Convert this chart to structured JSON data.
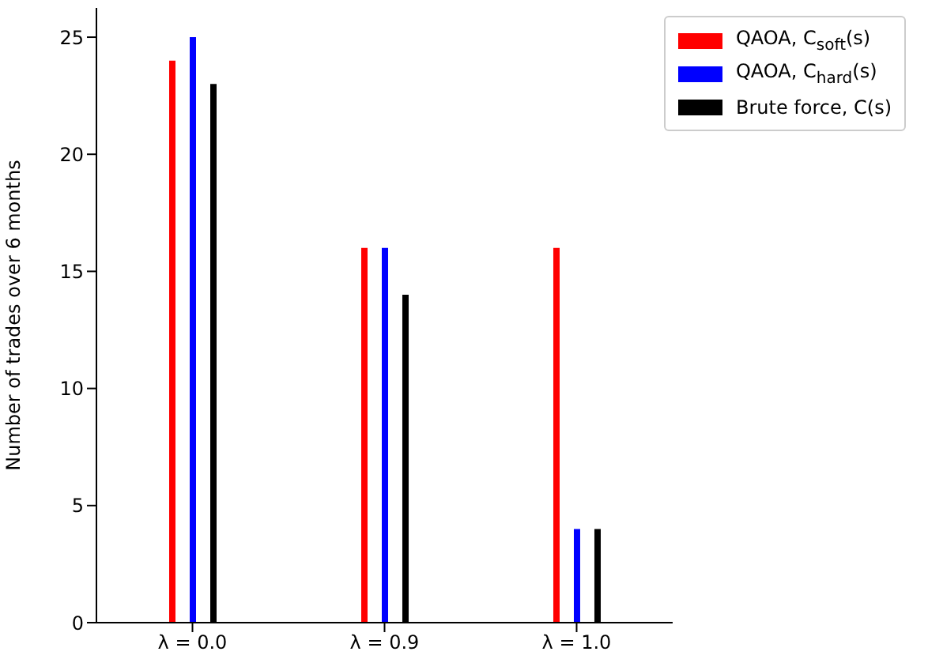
{
  "chart_data": {
    "type": "bar",
    "categories": [
      "λ = 0.0",
      "λ = 0.9",
      "λ = 1.0"
    ],
    "ylabel": "Number of trades over 6 months",
    "series": [
      {
        "name": "QAOA, C$_{soft}$(s)",
        "color": "#ff0000",
        "values": [
          24,
          16,
          16
        ]
      },
      {
        "name": "QAOA, C$_{hard}$(s)",
        "color": "#0000ff",
        "values": [
          25,
          16,
          4
        ]
      },
      {
        "name": "Brute force, C(s)",
        "color": "#000000",
        "values": [
          23,
          14,
          4
        ]
      }
    ],
    "ylim": [
      0,
      26.25
    ],
    "yticks": [
      0,
      5,
      10,
      15,
      20,
      25
    ],
    "grid": false,
    "legend": "top right"
  }
}
